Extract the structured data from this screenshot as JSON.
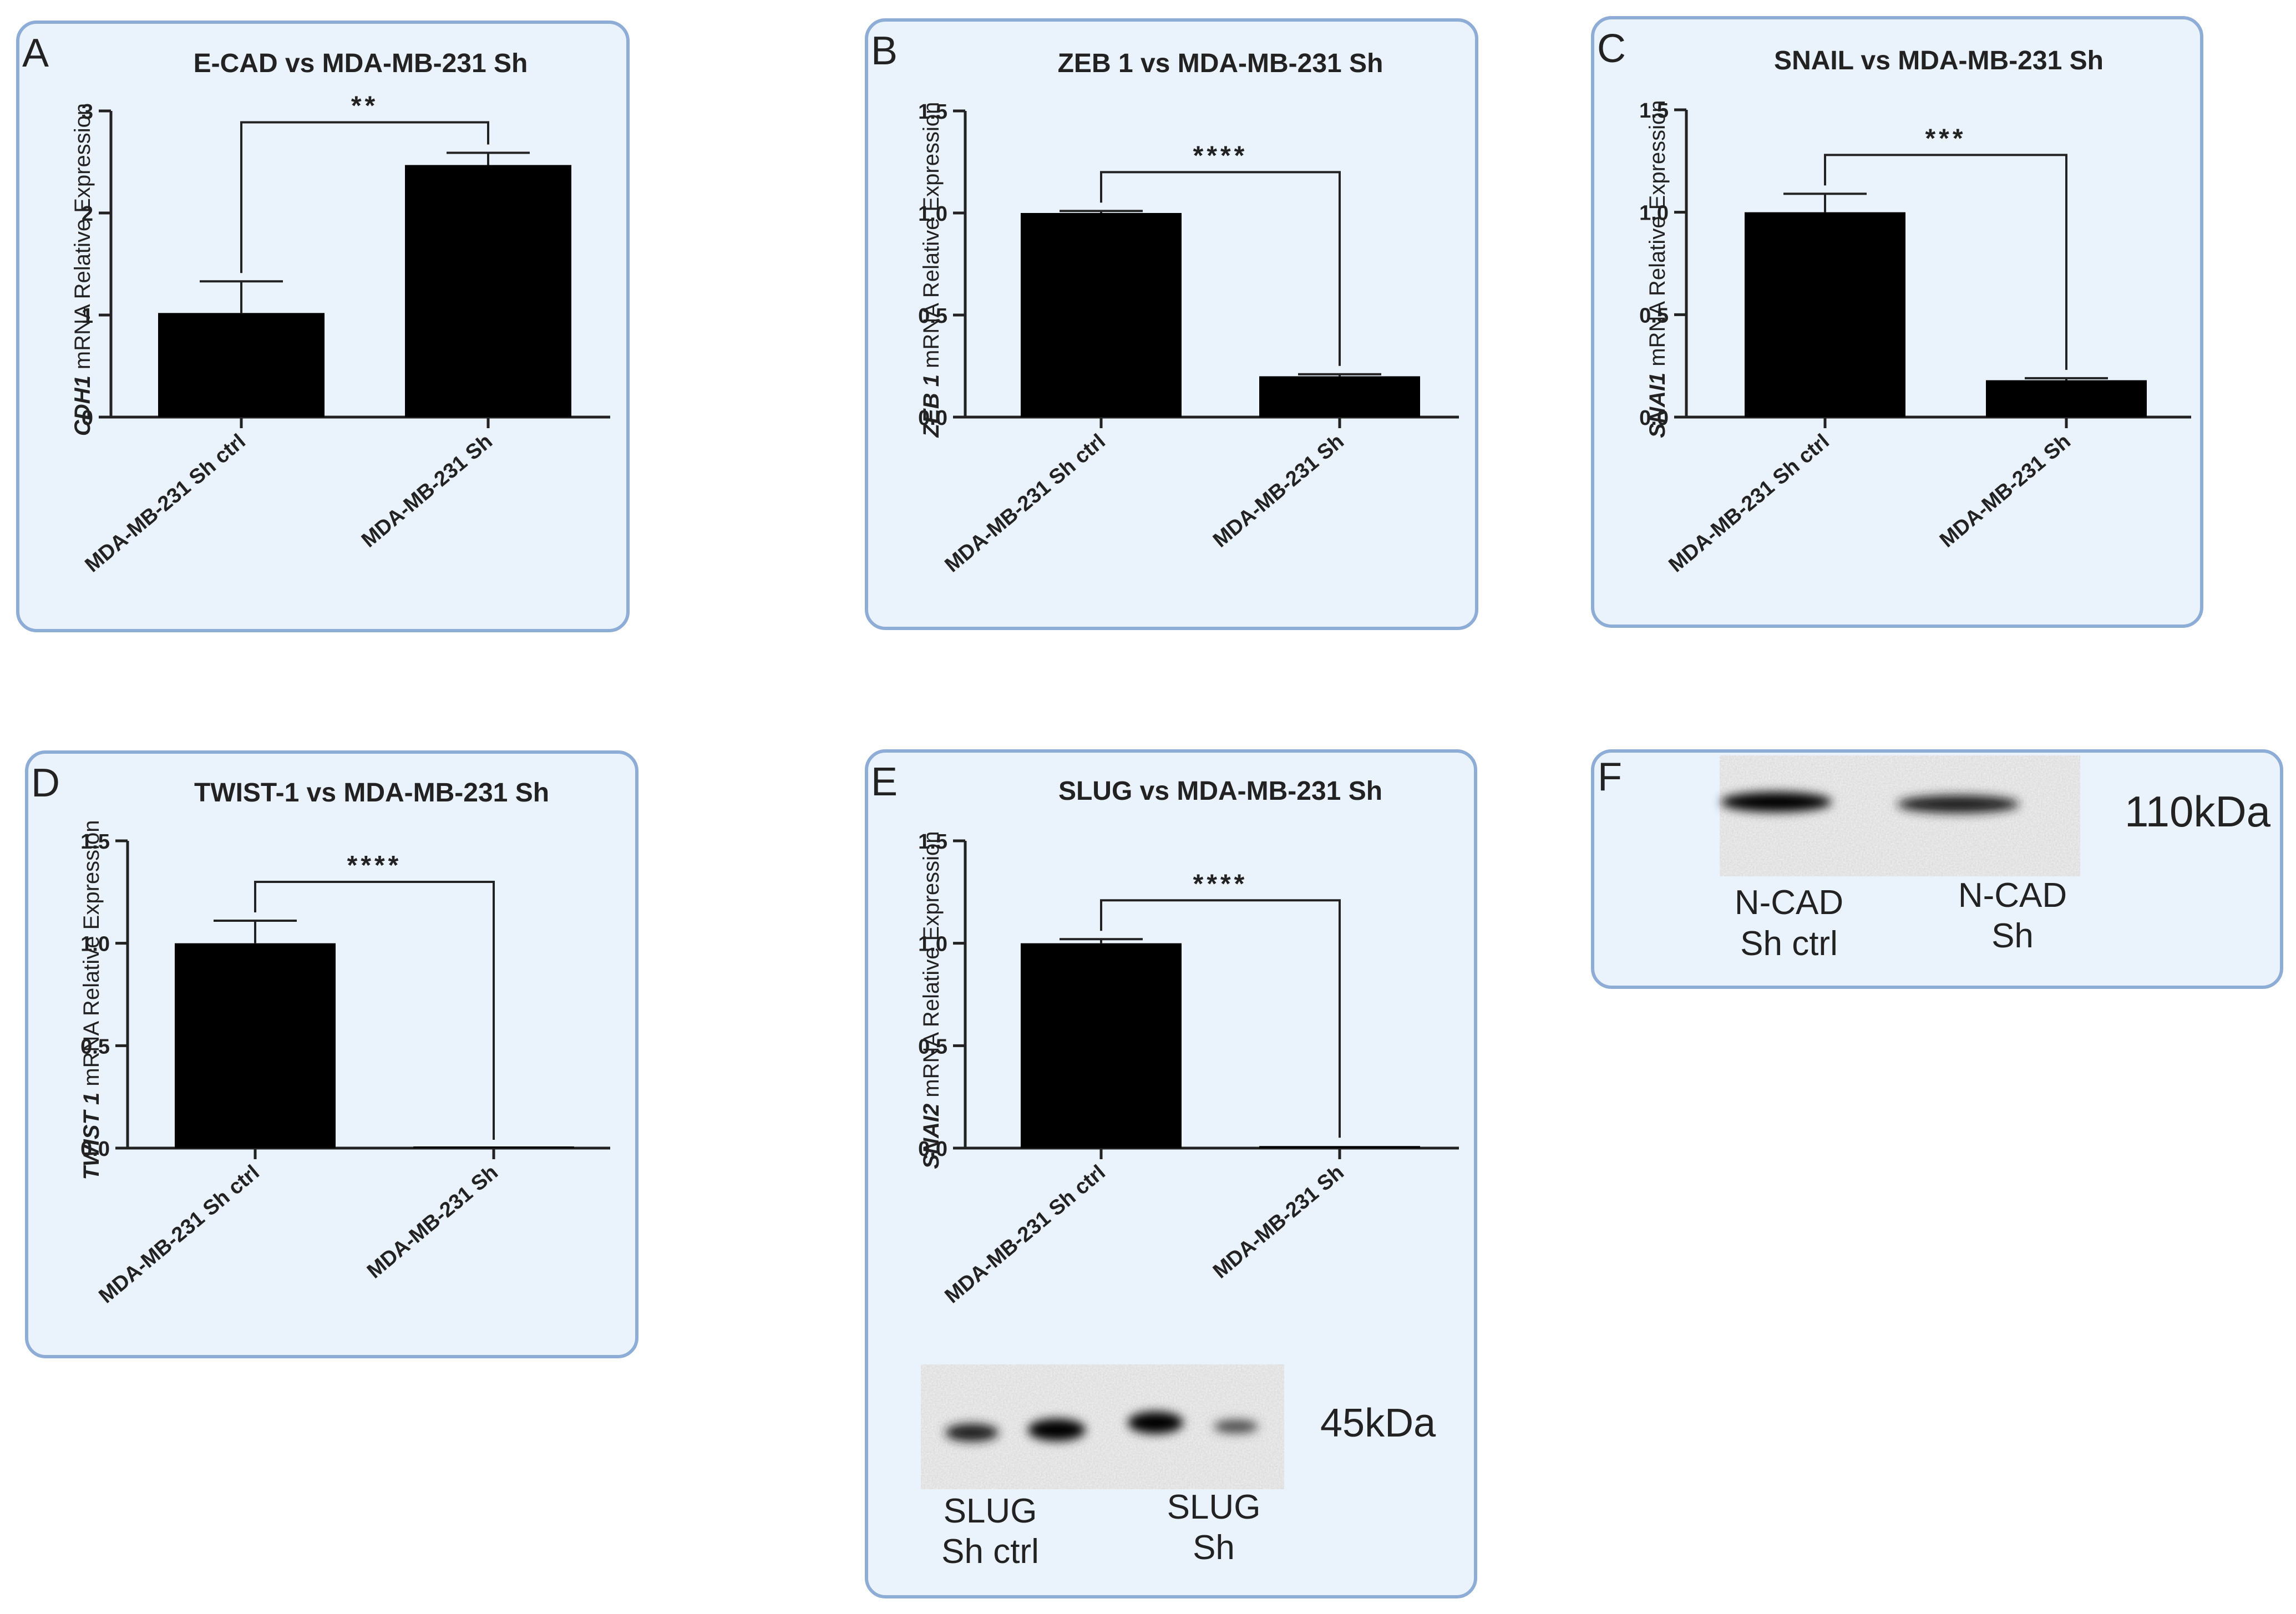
{
  "panel_fill": "#eaf2fc",
  "panel_stroke": "#8eadd6",
  "bar_color": "#000000",
  "chart_data": [
    {
      "id": "A",
      "letter": "A",
      "type": "bar",
      "title": "E-CAD vs MDA-MB-231 Sh",
      "ylabel_gene": "CDH1",
      "ylabel_rest": " mRNA Relative Expression",
      "categories": [
        "MDA-MB-231 Sh ctrl",
        "MDA-MB-231 Sh"
      ],
      "values": [
        1.02,
        2.47
      ],
      "errors": [
        0.31,
        0.12
      ],
      "ylim": [
        0,
        3
      ],
      "yticks": [
        "0",
        "1",
        "2",
        "3"
      ],
      "ytick_values": [
        0,
        1,
        2,
        3
      ],
      "significance": "**"
    },
    {
      "id": "B",
      "letter": "B",
      "type": "bar",
      "title": "ZEB 1 vs MDA-MB-231 Sh",
      "ylabel_gene": "ZEB 1",
      "ylabel_rest": " mRNA Relative Expression",
      "categories": [
        "MDA-MB-231 Sh ctrl",
        "MDA-MB-231 Sh"
      ],
      "values": [
        1.0,
        0.2
      ],
      "errors": [
        0.01,
        0.01
      ],
      "ylim": [
        0,
        1.5
      ],
      "yticks": [
        "0.0",
        "0.5",
        "1.0",
        "1.5"
      ],
      "ytick_values": [
        0,
        0.5,
        1.0,
        1.5
      ],
      "significance": "****"
    },
    {
      "id": "C",
      "letter": "C",
      "type": "bar",
      "title": "SNAIL vs MDA-MB-231 Sh",
      "ylabel_gene": "SNAI1",
      "ylabel_rest": " mRNA Relative Expression",
      "categories": [
        "MDA-MB-231 Sh ctrl",
        "MDA-MB-231 Sh"
      ],
      "values": [
        1.0,
        0.18
      ],
      "errors": [
        0.09,
        0.01
      ],
      "ylim": [
        0,
        1.5
      ],
      "yticks": [
        "0.0",
        "0.5",
        "1.0",
        "1.5"
      ],
      "ytick_values": [
        0,
        0.5,
        1.0,
        1.5
      ],
      "significance": "***"
    },
    {
      "id": "D",
      "letter": "D",
      "type": "bar",
      "title": "TWIST-1 vs MDA-MB-231 Sh",
      "ylabel_gene": "TWIST 1",
      "ylabel_rest": " mRNA Relative Expression",
      "categories": [
        "MDA-MB-231 Sh ctrl",
        "MDA-MB-231 Sh"
      ],
      "values": [
        1.0,
        0.0
      ],
      "errors": [
        0.11,
        0.0
      ],
      "ylim": [
        0,
        1.5
      ],
      "yticks": [
        "0.0",
        "0.5",
        "1.0",
        "1.5"
      ],
      "ytick_values": [
        0,
        0.5,
        1.0,
        1.5
      ],
      "significance": "****"
    },
    {
      "id": "E",
      "letter": "E",
      "type": "bar",
      "title": "SLUG vs MDA-MB-231 Sh",
      "ylabel_gene": "SNAI2",
      "ylabel_rest": " mRNA Relative Expression",
      "categories": [
        "MDA-MB-231 Sh ctrl",
        "MDA-MB-231 Sh"
      ],
      "values": [
        1.0,
        0.01
      ],
      "errors": [
        0.02,
        0.0
      ],
      "ylim": [
        0,
        1.5
      ],
      "yticks": [
        "0.0",
        "0.5",
        "1.0",
        "1.5"
      ],
      "ytick_values": [
        0,
        0.5,
        1.0,
        1.5
      ],
      "significance": "****"
    }
  ],
  "blots": {
    "E": {
      "kda": "45kDa",
      "lane1": [
        "SLUG",
        "Sh ctrl"
      ],
      "lane2": [
        "SLUG",
        "Sh"
      ]
    },
    "F": {
      "letter": "F",
      "kda": "110kDa",
      "lane1": [
        "N-CAD",
        "Sh ctrl"
      ],
      "lane2": [
        "N-CAD",
        "Sh"
      ]
    }
  }
}
